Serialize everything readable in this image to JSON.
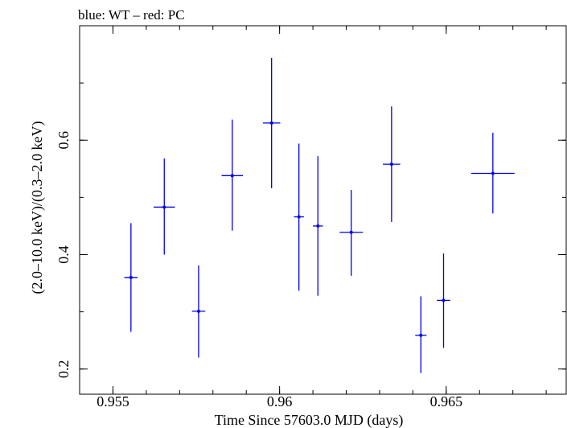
{
  "chart_data": {
    "type": "scatter",
    "title": "blue: WT – red: PC",
    "xlabel": "Time Since 57603.0 MJD (days)",
    "ylabel": "(2.0–10.0 keV)/(0.3–2.0 keV)",
    "xlim": [
      0.954,
      0.9686
    ],
    "ylim": [
      0.156,
      0.8
    ],
    "xticks": [
      {
        "value": 0.955,
        "label": "0.955"
      },
      {
        "value": 0.96,
        "label": "0.96"
      },
      {
        "value": 0.965,
        "label": "0.965"
      }
    ],
    "yticks": [
      {
        "value": 0.2,
        "label": "0.2"
      },
      {
        "value": 0.4,
        "label": "0.4"
      },
      {
        "value": 0.6,
        "label": "0.6"
      }
    ],
    "xminor_step": 0.001,
    "yminor_step": 0.1,
    "series": [
      {
        "color": "#0000ee",
        "points": [
          {
            "x": 0.95554,
            "y": 0.36,
            "xerr": 0.0002,
            "ylo": 0.265,
            "yhi": 0.455
          },
          {
            "x": 0.95654,
            "y": 0.483,
            "xerr": 0.00032,
            "ylo": 0.4,
            "yhi": 0.568
          },
          {
            "x": 0.95757,
            "y": 0.301,
            "xerr": 0.0002,
            "ylo": 0.22,
            "yhi": 0.381
          },
          {
            "x": 0.95858,
            "y": 0.538,
            "xerr": 0.00032,
            "ylo": 0.442,
            "yhi": 0.636
          },
          {
            "x": 0.95976,
            "y": 0.63,
            "xerr": 0.00026,
            "ylo": 0.516,
            "yhi": 0.744
          },
          {
            "x": 0.96058,
            "y": 0.466,
            "xerr": 0.00015,
            "ylo": 0.337,
            "yhi": 0.594
          },
          {
            "x": 0.96115,
            "y": 0.45,
            "xerr": 0.00015,
            "ylo": 0.328,
            "yhi": 0.572
          },
          {
            "x": 0.96215,
            "y": 0.439,
            "xerr": 0.00035,
            "ylo": 0.363,
            "yhi": 0.513
          },
          {
            "x": 0.96336,
            "y": 0.558,
            "xerr": 0.00026,
            "ylo": 0.457,
            "yhi": 0.659
          },
          {
            "x": 0.96424,
            "y": 0.259,
            "xerr": 0.00017,
            "ylo": 0.193,
            "yhi": 0.327
          },
          {
            "x": 0.96492,
            "y": 0.32,
            "xerr": 0.0002,
            "ylo": 0.237,
            "yhi": 0.402
          },
          {
            "x": 0.9664,
            "y": 0.542,
            "xerr": 0.00065,
            "ylo": 0.472,
            "yhi": 0.613
          }
        ]
      }
    ]
  }
}
